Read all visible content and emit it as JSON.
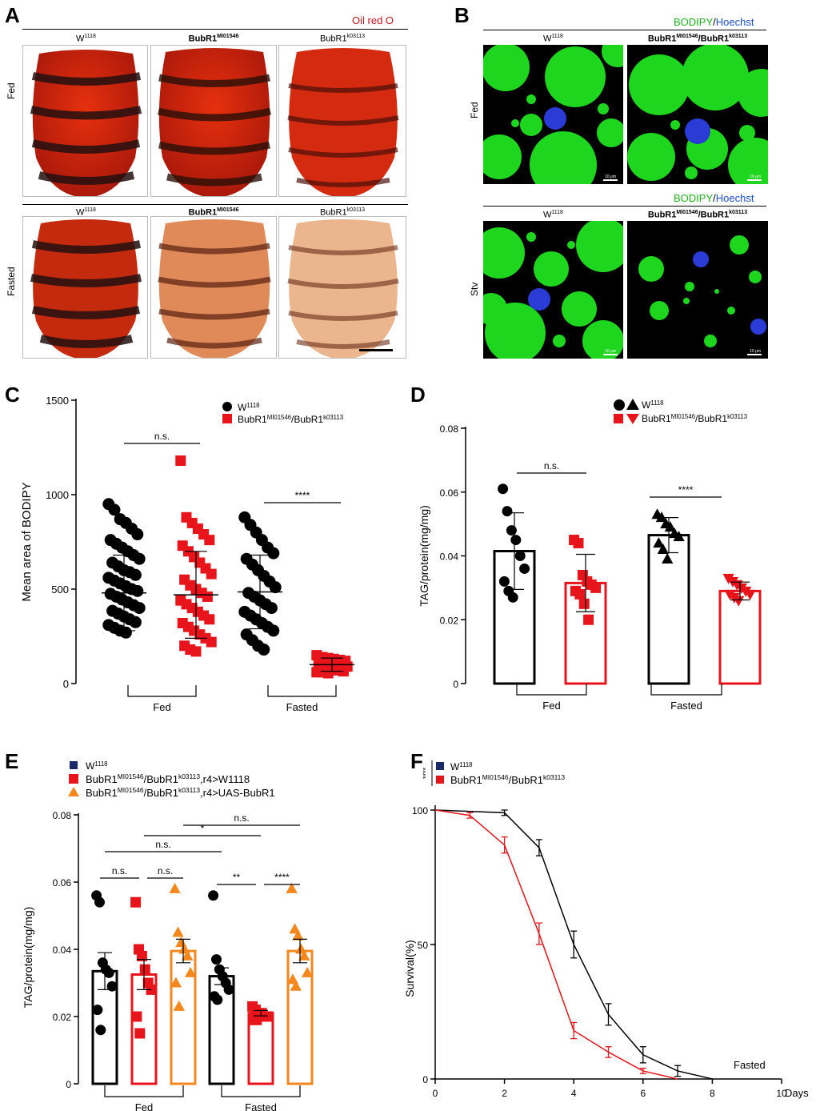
{
  "panels": {
    "A": {
      "label": "A",
      "stain": "Oil red O",
      "rows": [
        "Fed",
        "Fasted"
      ],
      "cols": [
        {
          "base": "W",
          "sup": "1118"
        },
        {
          "base": "BubR1",
          "sup": "MI01546"
        },
        {
          "base": "BubR1",
          "sup": "k03113"
        }
      ]
    },
    "B": {
      "label": "B",
      "stain1": "BODIPY",
      "sep": "/",
      "stain2": "Hoechst",
      "rows": [
        "Fed",
        "Stv"
      ],
      "cols": [
        {
          "base": "W",
          "sup": "1118"
        },
        {
          "base": "BubR1",
          "sup": "MI01546",
          "mid": "/BubR1",
          "sup2": "k03113"
        }
      ],
      "scalebar": "10 μm"
    },
    "C": {
      "label": "C"
    },
    "D": {
      "label": "D"
    },
    "E": {
      "label": "E"
    },
    "F": {
      "label": "F"
    }
  },
  "chart_data": [
    {
      "id": "C",
      "type": "scatter",
      "ylabel": "Mean area of BODIPY",
      "ylim": [
        0,
        1500
      ],
      "yticks": [
        0,
        500,
        1000,
        1500
      ],
      "groups": [
        "Fed",
        "Fasted"
      ],
      "legend": [
        {
          "base": "W",
          "sup": "1118",
          "color": "#000000"
        },
        {
          "base": "BubR1",
          "sup": "MI01546",
          "mid": "/BubR1",
          "sup2": "k03113",
          "color": "#e8141b"
        }
      ],
      "series": [
        {
          "name": "W1118 Fed",
          "mean": 480,
          "sd": 200,
          "values": [
            950,
            920,
            870,
            850,
            820,
            790,
            760,
            740,
            720,
            700,
            680,
            660,
            640,
            620,
            600,
            590,
            575,
            560,
            545,
            530,
            515,
            500,
            490,
            475,
            460,
            445,
            430,
            415,
            400,
            385,
            370,
            355,
            340,
            325,
            310,
            295,
            280,
            270
          ]
        },
        {
          "name": "BubR1 Fed",
          "mean": 470,
          "sd": 230,
          "values": [
            1180,
            880,
            850,
            820,
            790,
            760,
            730,
            700,
            670,
            640,
            610,
            580,
            550,
            520,
            500,
            480,
            460,
            440,
            420,
            400,
            380,
            360,
            340,
            320,
            300,
            280,
            260,
            240,
            220,
            200,
            180,
            170
          ]
        },
        {
          "name": "W1118 Fasted",
          "mean": 485,
          "sd": 195,
          "values": [
            880,
            840,
            800,
            760,
            720,
            690,
            660,
            630,
            600,
            570,
            540,
            510,
            480,
            460,
            440,
            420,
            400,
            380,
            360,
            340,
            320,
            300,
            280,
            260,
            230,
            200,
            180
          ]
        },
        {
          "name": "BubR1 Fasted",
          "mean": 100,
          "sd": 35,
          "values": [
            150,
            140,
            135,
            130,
            125,
            120,
            115,
            110,
            105,
            100,
            95,
            90,
            85,
            80,
            75,
            70,
            65,
            60,
            60,
            55
          ]
        }
      ],
      "annotations": [
        {
          "text": "n.s.",
          "between": [
            0,
            1
          ]
        },
        {
          "text": "****",
          "between": [
            2,
            3
          ]
        }
      ]
    },
    {
      "id": "D",
      "type": "bar",
      "ylabel": "TAG/protein(mg/mg)",
      "ylim": [
        0,
        0.08
      ],
      "yticks": [
        "0",
        "0.02",
        "0.04",
        "0.06",
        "0.08"
      ],
      "groups": [
        "Fed",
        "Fasted"
      ],
      "legend": [
        {
          "base": "W",
          "sup": "1118",
          "color": "#000000"
        },
        {
          "base": "BubR1",
          "sup": "MI01546",
          "mid": "/BubR1",
          "sup2": "k03113",
          "color": "#e8141b"
        }
      ],
      "series": [
        {
          "name": "W1118 Fed",
          "mean": 0.0415,
          "sem": 0.012,
          "shape": "circle",
          "values": [
            0.061,
            0.054,
            0.048,
            0.045,
            0.04,
            0.036,
            0.032,
            0.029,
            0.027
          ]
        },
        {
          "name": "BubR1 Fed",
          "mean": 0.0315,
          "sem": 0.009,
          "shape": "square",
          "values": [
            0.045,
            0.044,
            0.034,
            0.032,
            0.031,
            0.03,
            0.029,
            0.028,
            0.025,
            0.02
          ]
        },
        {
          "name": "W1118 Fasted",
          "mean": 0.0465,
          "sem": 0.0055,
          "shape": "triangle",
          "values": [
            0.053,
            0.052,
            0.05,
            0.049,
            0.047,
            0.046,
            0.044,
            0.042,
            0.039
          ]
        },
        {
          "name": "BubR1 Fasted",
          "mean": 0.029,
          "sem": 0.0028,
          "shape": "invtriangle",
          "values": [
            0.033,
            0.032,
            0.031,
            0.03,
            0.029,
            0.028,
            0.028,
            0.027,
            0.026
          ]
        }
      ],
      "annotations": [
        {
          "text": "n.s.",
          "between": [
            0,
            1
          ]
        },
        {
          "text": "****",
          "between": [
            2,
            3
          ]
        }
      ]
    },
    {
      "id": "E",
      "type": "bar",
      "ylabel": "TAG/protein(mg/mg)",
      "ylim": [
        0,
        0.08
      ],
      "yticks": [
        "0",
        "0.02",
        "0.04",
        "0.06",
        "0.08"
      ],
      "groups": [
        "Fed",
        "Fasted"
      ],
      "legend": [
        {
          "base": "W",
          "sup": "1118",
          "color": "#1b2a6b",
          "shape": "square"
        },
        {
          "base": "BubR1",
          "sup": "MI01546",
          "mid": "/BubR1",
          "sup2": "k03113",
          "tail": ",r4>W1118",
          "color": "#e8141b",
          "shape": "square"
        },
        {
          "base": "BubR1",
          "sup": "MI01546",
          "mid": "/BubR1",
          "sup2": "k03113",
          "tail": ",r4>UAS-BubR1",
          "color": "#f5871f",
          "shape": "triangle"
        }
      ],
      "series": [
        {
          "name": "W1118 Fed",
          "mean": 0.0335,
          "sem": 0.0055,
          "values": [
            0.056,
            0.054,
            0.036,
            0.034,
            0.033,
            0.029,
            0.022,
            0.016
          ]
        },
        {
          "name": "r4>W1118 Fed",
          "mean": 0.0325,
          "sem": 0.0045,
          "values": [
            0.054,
            0.04,
            0.038,
            0.034,
            0.03,
            0.028,
            0.02,
            0.015
          ]
        },
        {
          "name": "r4>UAS-BubR1 Fed",
          "mean": 0.0395,
          "sem": 0.0035,
          "values": [
            0.058,
            0.045,
            0.042,
            0.04,
            0.038,
            0.033,
            0.03,
            0.023
          ]
        },
        {
          "name": "W1118 Fasted",
          "mean": 0.032,
          "sem": 0.0025,
          "values": [
            0.056,
            0.037,
            0.034,
            0.032,
            0.03,
            0.028,
            0.026,
            0.025
          ]
        },
        {
          "name": "r4>W1118 Fasted",
          "mean": 0.021,
          "sem": 0.0008,
          "values": [
            0.023,
            0.022,
            0.021,
            0.021,
            0.02,
            0.02,
            0.019,
            0.019
          ]
        },
        {
          "name": "r4>UAS-BubR1 Fasted",
          "mean": 0.0395,
          "sem": 0.0035,
          "values": [
            0.058,
            0.046,
            0.044,
            0.04,
            0.038,
            0.033,
            0.031,
            0.029
          ]
        }
      ],
      "annotations": [
        {
          "text": "n.s.",
          "between": [
            0,
            1
          ],
          "level": 1
        },
        {
          "text": "n.s.",
          "between": [
            1,
            2
          ],
          "level": 1
        },
        {
          "text": "**",
          "between": [
            3,
            4
          ],
          "level": 1
        },
        {
          "text": "****",
          "between": [
            4,
            5
          ],
          "level": 1
        },
        {
          "text": "n.s.",
          "between": [
            0,
            3
          ],
          "level": 2
        },
        {
          "text": "*",
          "between": [
            1,
            4
          ],
          "level": 3
        },
        {
          "text": "n.s.",
          "between": [
            2,
            5
          ],
          "level": 4
        }
      ]
    },
    {
      "id": "F",
      "type": "line",
      "ylabel": "Survival(%)",
      "xlabel": "Days",
      "xlim": [
        0,
        10
      ],
      "ylim": [
        0,
        100
      ],
      "xticks": [
        0,
        2,
        4,
        6,
        8,
        10
      ],
      "yticks": [
        0,
        50,
        100
      ],
      "annotation": "Fasted",
      "significance": "****",
      "legend": [
        {
          "base": "W",
          "sup": "1118",
          "color": "#1b2a6b"
        },
        {
          "base": "BubR1",
          "sup": "MI01546",
          "mid": "/BubR1",
          "sup2": "k03113",
          "color": "#e8141b"
        }
      ],
      "series": [
        {
          "name": "W1118",
          "color": "#000000",
          "x": [
            0,
            2,
            3,
            4,
            5,
            6,
            7,
            8
          ],
          "y": [
            100,
            99,
            86,
            50,
            24,
            9,
            3,
            0
          ],
          "err": [
            0,
            1,
            3,
            5,
            4,
            3,
            2,
            0
          ]
        },
        {
          "name": "BubR1MI01546/BubR1k03113",
          "color": "#e8141b",
          "x": [
            0,
            1,
            2,
            3,
            4,
            5,
            6,
            7
          ],
          "y": [
            100,
            98,
            87,
            54,
            18,
            10,
            3,
            0
          ],
          "err": [
            0,
            1,
            3,
            4,
            3,
            2,
            1,
            0
          ]
        }
      ]
    }
  ]
}
